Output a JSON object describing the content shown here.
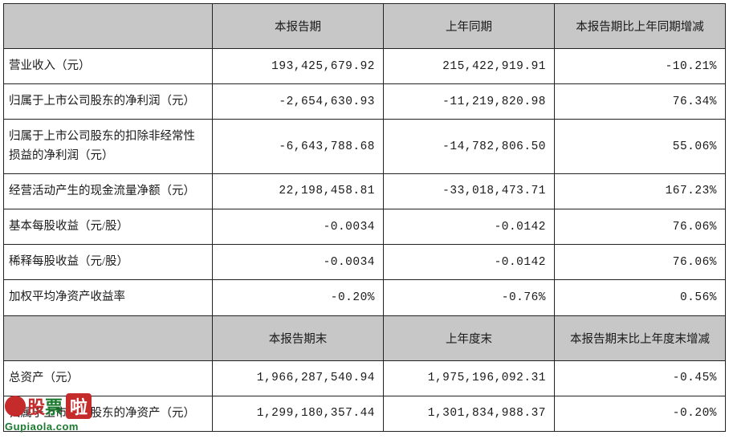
{
  "table": {
    "header1": {
      "blank": "",
      "col1": "本报告期",
      "col2": "上年同期",
      "col3": "本报告期比上年同期增减"
    },
    "rows1": [
      {
        "label": "营业收入（元）",
        "v1": "193,425,679.92",
        "v2": "215,422,919.91",
        "v3": "-10.21%"
      },
      {
        "label": "归属于上市公司股东的净利润（元）",
        "v1": "-2,654,630.93",
        "v2": "-11,219,820.98",
        "v3": "76.34%"
      },
      {
        "label": "归属于上市公司股东的扣除非经常性损益的净利润（元）",
        "v1": "-6,643,788.68",
        "v2": "-14,782,806.50",
        "v3": "55.06%"
      },
      {
        "label": "经营活动产生的现金流量净额（元）",
        "v1": "22,198,458.81",
        "v2": "-33,018,473.71",
        "v3": "167.23%"
      },
      {
        "label": "基本每股收益（元/股）",
        "v1": "-0.0034",
        "v2": "-0.0142",
        "v3": "76.06%"
      },
      {
        "label": "稀释每股收益（元/股）",
        "v1": "-0.0034",
        "v2": "-0.0142",
        "v3": "76.06%"
      },
      {
        "label": "加权平均净资产收益率",
        "v1": "-0.20%",
        "v2": "-0.76%",
        "v3": "0.56%"
      }
    ],
    "header2": {
      "blank": "",
      "col1": "本报告期末",
      "col2": "上年度末",
      "col3": "本报告期末比上年度末增减"
    },
    "rows2": [
      {
        "label": "总资产（元）",
        "v1": "1,966,287,540.94",
        "v2": "1,975,196,092.31",
        "v3": "-0.45%"
      },
      {
        "label": "归属于上市公司股东的净资产（元）",
        "v1": "1,299,180,357.44",
        "v2": "1,301,834,988.37",
        "v3": "-0.20%"
      }
    ]
  },
  "watermark": {
    "brand_gu": "股",
    "brand_piao": "票",
    "brand_la": "啦",
    "url": "Gupiaola.com"
  },
  "colors": {
    "header_bg": "#c7c7c7",
    "border": "#222222",
    "text": "#1a1a1a",
    "wm_red": "#c52b2b",
    "wm_green": "#1a7a2e"
  }
}
